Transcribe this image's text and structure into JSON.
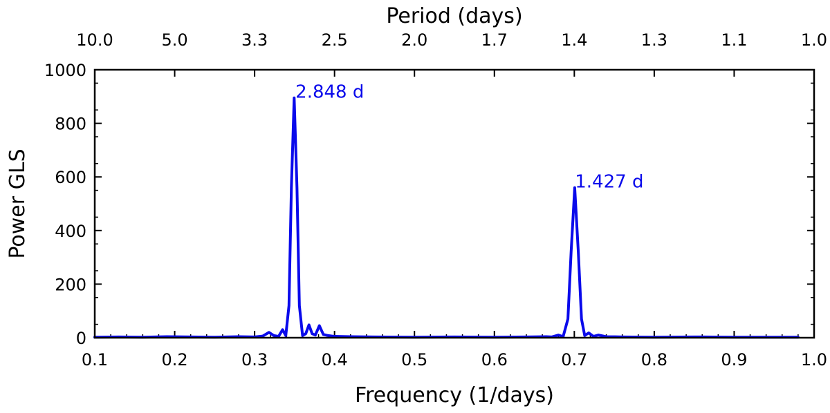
{
  "chart_data": {
    "type": "line",
    "xlabel": "Frequency (1/days)",
    "ylabel": "Power GLS",
    "top_xlabel": "Period (days)",
    "xlim": [
      0.1,
      1.0
    ],
    "ylim": [
      0,
      1000
    ],
    "x_ticks": [
      0.1,
      0.2,
      0.3,
      0.4,
      0.5,
      0.6,
      0.7,
      0.8,
      0.9,
      1.0
    ],
    "x_tick_labels": [
      "0.1",
      "0.2",
      "0.3",
      "0.4",
      "0.5",
      "0.6",
      "0.7",
      "0.8",
      "0.9",
      "1.0"
    ],
    "y_ticks": [
      0,
      200,
      400,
      600,
      800,
      1000
    ],
    "y_tick_labels": [
      "0",
      "200",
      "400",
      "600",
      "800",
      "1000"
    ],
    "top_ticks": [
      {
        "label": "10.0",
        "period": 10.0
      },
      {
        "label": "5.0",
        "period": 5.0
      },
      {
        "label": "3.3",
        "period": 3.3333
      },
      {
        "label": "2.5",
        "period": 2.5
      },
      {
        "label": "2.0",
        "period": 2.0
      },
      {
        "label": "1.7",
        "period": 1.6667
      },
      {
        "label": "1.4",
        "period": 1.4286
      },
      {
        "label": "1.3",
        "period": 1.25
      },
      {
        "label": "1.1",
        "period": 1.1111
      },
      {
        "label": "1.0",
        "period": 1.0
      }
    ],
    "grid": false,
    "line_color": "#0a0aeb",
    "series": [
      {
        "points": [
          [
            0.1,
            2
          ],
          [
            0.13,
            3
          ],
          [
            0.16,
            2
          ],
          [
            0.19,
            4
          ],
          [
            0.22,
            3
          ],
          [
            0.25,
            2
          ],
          [
            0.28,
            4
          ],
          [
            0.3,
            3
          ],
          [
            0.31,
            6
          ],
          [
            0.318,
            20
          ],
          [
            0.324,
            8
          ],
          [
            0.33,
            5
          ],
          [
            0.335,
            30
          ],
          [
            0.339,
            8
          ],
          [
            0.343,
            120
          ],
          [
            0.346,
            560
          ],
          [
            0.3495,
            895
          ],
          [
            0.353,
            560
          ],
          [
            0.356,
            120
          ],
          [
            0.36,
            8
          ],
          [
            0.364,
            15
          ],
          [
            0.368,
            48
          ],
          [
            0.372,
            15
          ],
          [
            0.376,
            10
          ],
          [
            0.381,
            45
          ],
          [
            0.386,
            12
          ],
          [
            0.392,
            8
          ],
          [
            0.4,
            5
          ],
          [
            0.42,
            4
          ],
          [
            0.45,
            3
          ],
          [
            0.5,
            2
          ],
          [
            0.55,
            3
          ],
          [
            0.6,
            2
          ],
          [
            0.64,
            3
          ],
          [
            0.665,
            4
          ],
          [
            0.672,
            3
          ],
          [
            0.68,
            10
          ],
          [
            0.686,
            4
          ],
          [
            0.692,
            70
          ],
          [
            0.696,
            320
          ],
          [
            0.7005,
            560
          ],
          [
            0.705,
            320
          ],
          [
            0.709,
            70
          ],
          [
            0.713,
            8
          ],
          [
            0.718,
            18
          ],
          [
            0.724,
            5
          ],
          [
            0.73,
            10
          ],
          [
            0.74,
            4
          ],
          [
            0.76,
            3
          ],
          [
            0.8,
            2
          ],
          [
            0.85,
            3
          ],
          [
            0.9,
            2
          ],
          [
            0.95,
            2
          ],
          [
            0.98,
            2
          ]
        ]
      }
    ],
    "annotations": [
      {
        "text": "2.848 d",
        "x": 0.3511,
        "y": 895
      },
      {
        "text": "1.427 d",
        "x": 0.7008,
        "y": 560
      }
    ]
  }
}
